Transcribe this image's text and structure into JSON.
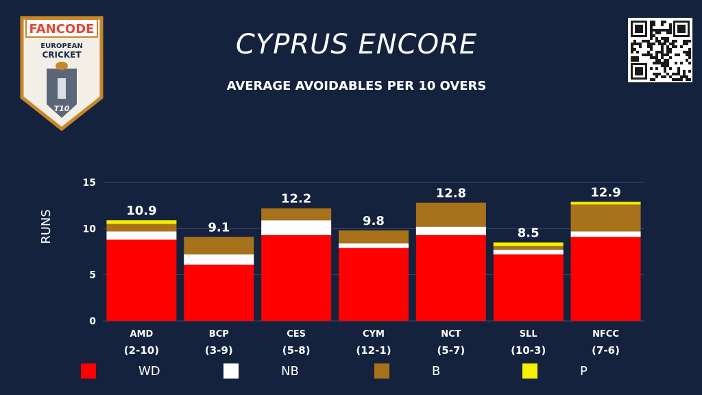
{
  "header": {
    "title": "CYPRUS ENCORE",
    "subtitle": "AVERAGE AVOIDABLES PER 10 OVERS"
  },
  "logo": {
    "brand": "FANCODE",
    "line1": "EUROPEAN",
    "line2": "CRICKET",
    "badge": "T10"
  },
  "colors": {
    "background": "#14223d",
    "WD": "#ff0000",
    "NB": "#ffffff",
    "B": "#a8721a",
    "P": "#f5f000"
  },
  "chart_data": {
    "type": "bar",
    "stacked": true,
    "ylabel": "RUNS",
    "ylim": [
      0,
      15
    ],
    "yticks": [
      0,
      5,
      10,
      15
    ],
    "grid": true,
    "legend_position": "bottom",
    "categories": [
      "AMD",
      "BCP",
      "CES",
      "CYM",
      "NCT",
      "SLL",
      "NFCC"
    ],
    "records": [
      "(2-10)",
      "(3-9)",
      "(5-8)",
      "(12-1)",
      "(5-7)",
      "(10-3)",
      "(7-6)"
    ],
    "totals": [
      "10.9",
      "9.1",
      "12.2",
      "9.8",
      "12.8",
      "8.5",
      "12.9"
    ],
    "series": [
      {
        "name": "WD",
        "values": [
          8.8,
          6.1,
          9.3,
          7.9,
          9.3,
          7.2,
          9.1
        ]
      },
      {
        "name": "NB",
        "values": [
          0.9,
          1.1,
          1.6,
          0.5,
          0.9,
          0.5,
          0.6
        ]
      },
      {
        "name": "B",
        "values": [
          0.8,
          1.9,
          1.3,
          1.4,
          2.6,
          0.4,
          2.9
        ]
      },
      {
        "name": "P",
        "values": [
          0.4,
          0.0,
          0.0,
          0.0,
          0.0,
          0.4,
          0.3
        ]
      }
    ]
  },
  "legend": [
    {
      "label": "WD",
      "color": "#ff0000"
    },
    {
      "label": "NB",
      "color": "#ffffff"
    },
    {
      "label": "B",
      "color": "#a8721a"
    },
    {
      "label": "P",
      "color": "#f5f000"
    }
  ]
}
